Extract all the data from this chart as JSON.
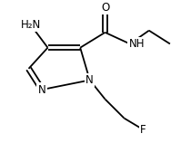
{
  "bg_color": "#ffffff",
  "bond_color": "#000000",
  "font_size": 8.5,
  "lw": 1.3,
  "fig_width": 2.1,
  "fig_height": 1.58,
  "dpi": 100,
  "xlim": [
    0,
    10
  ],
  "ylim": [
    0,
    7.5
  ]
}
